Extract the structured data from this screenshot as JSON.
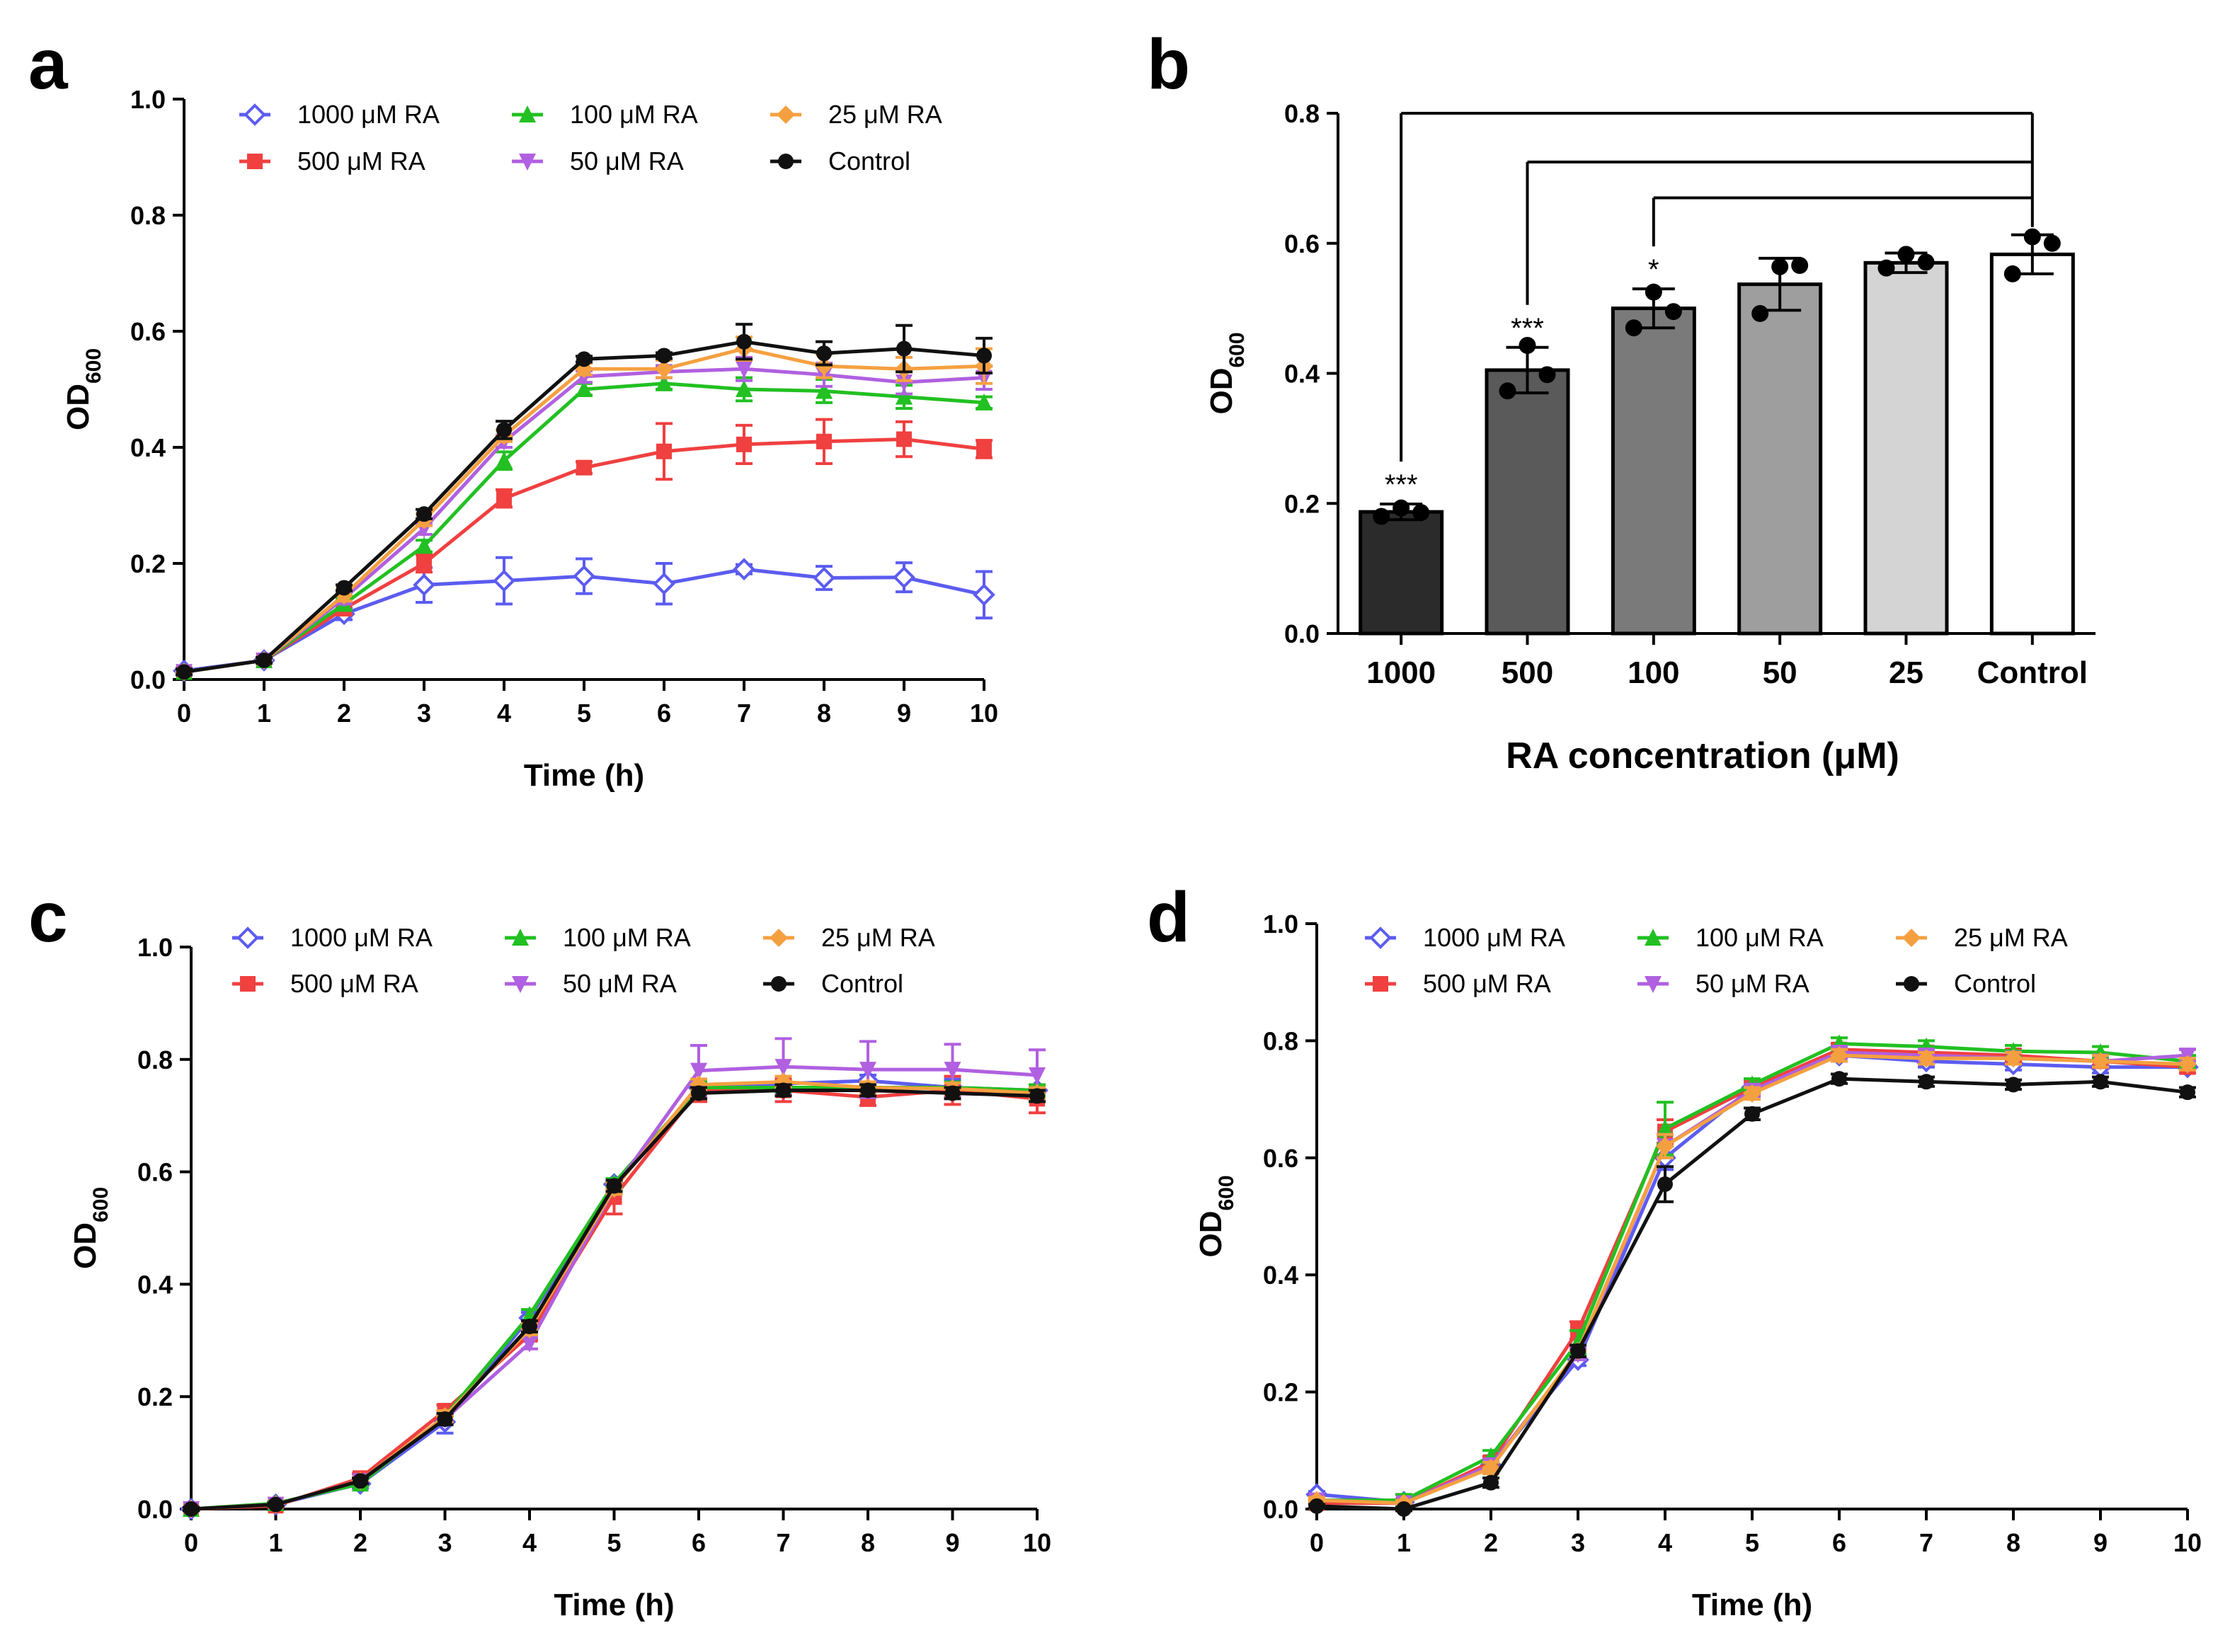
{
  "chart_data": [
    {
      "type": "line",
      "panel": "a",
      "xlabel": "Time (h)",
      "ylabel": "OD",
      "ylabel_sub": "600",
      "xlim": [
        0,
        10
      ],
      "ylim": [
        0,
        1.0
      ],
      "xticks": [
        "0",
        "1",
        "2",
        "3",
        "4",
        "5",
        "6",
        "7",
        "8",
        "9",
        "10"
      ],
      "yticks": [
        "0.0",
        "0.2",
        "0.4",
        "0.6",
        "0.8",
        "1.0"
      ],
      "legend": {
        "position": "top"
      },
      "series": [
        {
          "name": "1000 μM RA",
          "color": "#5c5cf0",
          "marker": "diamond-open",
          "y": [
            0.015,
            0.033,
            0.113,
            0.163,
            0.17,
            0.178,
            0.165,
            0.19,
            0.175,
            0.176,
            0.146
          ],
          "err": [
            0.005,
            0.005,
            0.01,
            0.03,
            0.04,
            0.03,
            0.035,
            0.008,
            0.02,
            0.025,
            0.04
          ]
        },
        {
          "name": "500 μM RA",
          "color": "#f04040",
          "marker": "square",
          "y": [
            0.013,
            0.033,
            0.122,
            0.2,
            0.312,
            0.365,
            0.393,
            0.405,
            0.41,
            0.414,
            0.397
          ],
          "err": [
            0.005,
            0.005,
            0.01,
            0.015,
            0.015,
            0.01,
            0.048,
            0.033,
            0.038,
            0.03,
            0.015
          ]
        },
        {
          "name": "100 μM RA",
          "color": "#22c022",
          "marker": "triangle-up",
          "y": [
            0.013,
            0.033,
            0.13,
            0.23,
            0.377,
            0.5,
            0.51,
            0.5,
            0.497,
            0.487,
            0.477
          ],
          "err": [
            0.005,
            0.005,
            0.01,
            0.01,
            0.015,
            0.01,
            0.01,
            0.02,
            0.02,
            0.02,
            0.01
          ]
        },
        {
          "name": "50 μM RA",
          "color": "#b060e0",
          "marker": "triangle-down",
          "y": [
            0.013,
            0.033,
            0.14,
            0.26,
            0.41,
            0.522,
            0.53,
            0.535,
            0.525,
            0.512,
            0.52
          ],
          "err": [
            0.005,
            0.005,
            0.01,
            0.01,
            0.01,
            0.01,
            0.01,
            0.02,
            0.02,
            0.02,
            0.02
          ]
        },
        {
          "name": "25 μM RA",
          "color": "#f5a040",
          "marker": "diamond",
          "y": [
            0.013,
            0.033,
            0.145,
            0.275,
            0.42,
            0.535,
            0.535,
            0.57,
            0.54,
            0.535,
            0.54
          ],
          "err": [
            0.005,
            0.005,
            0.01,
            0.01,
            0.01,
            0.01,
            0.015,
            0.02,
            0.02,
            0.02,
            0.03
          ]
        },
        {
          "name": "Control",
          "color": "#111111",
          "marker": "circle",
          "y": [
            0.013,
            0.033,
            0.158,
            0.285,
            0.43,
            0.552,
            0.558,
            0.582,
            0.562,
            0.57,
            0.558
          ],
          "err": [
            0.005,
            0.005,
            0.005,
            0.008,
            0.015,
            0.005,
            0.005,
            0.03,
            0.02,
            0.04,
            0.03
          ]
        }
      ]
    },
    {
      "type": "bar",
      "panel": "b",
      "xlabel": "RA concentration (μM)",
      "ylabel": "OD",
      "ylabel_sub": "600",
      "ylim": [
        0,
        0.8
      ],
      "yticks": [
        "0.0",
        "0.2",
        "0.4",
        "0.6",
        "0.8"
      ],
      "categories": [
        "1000",
        "500",
        "100",
        "50",
        "25",
        "Control"
      ],
      "values": [
        0.187,
        0.405,
        0.5,
        0.537,
        0.57,
        0.583
      ],
      "errors": [
        0.012,
        0.035,
        0.03,
        0.04,
        0.015,
        0.03
      ],
      "points": [
        [
          0.18,
          0.193,
          0.186
        ],
        [
          0.373,
          0.443,
          0.398
        ],
        [
          0.47,
          0.525,
          0.495
        ],
        [
          0.492,
          0.564,
          0.566
        ],
        [
          0.562,
          0.583,
          0.571
        ],
        [
          0.553,
          0.61,
          0.6
        ]
      ],
      "fills": [
        "#2b2b2b",
        "#5a5a5a",
        "#7a7a7a",
        "#9e9e9e",
        "#d4d4d4",
        "#ffffff"
      ],
      "significance": [
        "***",
        "***",
        "*",
        "",
        "",
        ""
      ],
      "comparisons": [
        {
          "from": "1000",
          "to": "Control"
        },
        {
          "from": "500",
          "to": "Control"
        },
        {
          "from": "100",
          "to": "Control"
        }
      ]
    },
    {
      "type": "line",
      "panel": "c",
      "xlabel": "Time (h)",
      "ylabel": "OD",
      "ylabel_sub": "600",
      "xlim": [
        0,
        10
      ],
      "ylim": [
        0,
        1.0
      ],
      "xticks": [
        "0",
        "1",
        "2",
        "3",
        "4",
        "5",
        "6",
        "7",
        "8",
        "9",
        "10"
      ],
      "yticks": [
        "0.0",
        "0.2",
        "0.4",
        "0.6",
        "0.8",
        "1.0"
      ],
      "legend": {
        "position": "top"
      },
      "series": [
        {
          "name": "1000 μM RA",
          "color": "#5c5cf0",
          "marker": "diamond-open",
          "y": [
            0.0,
            0.008,
            0.045,
            0.155,
            0.34,
            0.578,
            0.75,
            0.757,
            0.762,
            0.75,
            0.745
          ],
          "err": [
            0.003,
            0.003,
            0.008,
            0.02,
            0.01,
            0.008,
            0.015,
            0.01,
            0.01,
            0.015,
            0.01
          ]
        },
        {
          "name": "500 μM RA",
          "color": "#f04040",
          "marker": "square",
          "y": [
            0.0,
            0.006,
            0.055,
            0.175,
            0.31,
            0.555,
            0.745,
            0.745,
            0.733,
            0.745,
            0.73
          ],
          "err": [
            0.003,
            0.003,
            0.008,
            0.01,
            0.01,
            0.03,
            0.02,
            0.02,
            0.015,
            0.025,
            0.025
          ]
        },
        {
          "name": "100 μM RA",
          "color": "#22c022",
          "marker": "triangle-up",
          "y": [
            0.0,
            0.01,
            0.045,
            0.165,
            0.345,
            0.58,
            0.75,
            0.75,
            0.75,
            0.75,
            0.745
          ],
          "err": [
            0.003,
            0.003,
            0.005,
            0.01,
            0.01,
            0.008,
            0.01,
            0.01,
            0.01,
            0.01,
            0.01
          ]
        },
        {
          "name": "50 μM RA",
          "color": "#b060e0",
          "marker": "triangle-down",
          "y": [
            0.0,
            0.008,
            0.05,
            0.16,
            0.295,
            0.57,
            0.78,
            0.787,
            0.782,
            0.782,
            0.772
          ],
          "err": [
            0.003,
            0.003,
            0.005,
            0.01,
            0.01,
            0.01,
            0.045,
            0.05,
            0.05,
            0.045,
            0.045
          ]
        },
        {
          "name": "25 μM RA",
          "color": "#f5a040",
          "marker": "diamond",
          "y": [
            0.0,
            0.008,
            0.05,
            0.165,
            0.32,
            0.57,
            0.755,
            0.76,
            0.75,
            0.748,
            0.74
          ],
          "err": [
            0.003,
            0.003,
            0.005,
            0.01,
            0.01,
            0.01,
            0.01,
            0.01,
            0.01,
            0.01,
            0.01
          ]
        },
        {
          "name": "Control",
          "color": "#111111",
          "marker": "circle",
          "y": [
            0.0,
            0.008,
            0.05,
            0.16,
            0.325,
            0.575,
            0.74,
            0.745,
            0.745,
            0.74,
            0.735
          ],
          "err": [
            0.003,
            0.003,
            0.005,
            0.01,
            0.01,
            0.01,
            0.01,
            0.01,
            0.01,
            0.01,
            0.01
          ]
        }
      ]
    },
    {
      "type": "line",
      "panel": "d",
      "xlabel": "Time (h)",
      "ylabel": "OD",
      "ylabel_sub": "600",
      "xlim": [
        0,
        10
      ],
      "ylim": [
        0,
        1.0
      ],
      "xticks": [
        "0",
        "1",
        "2",
        "3",
        "4",
        "5",
        "6",
        "7",
        "8",
        "9",
        "10"
      ],
      "yticks": [
        "0.0",
        "0.2",
        "0.4",
        "0.6",
        "0.8",
        "1.0"
      ],
      "legend": {
        "position": "top"
      },
      "series": [
        {
          "name": "1000 μM RA",
          "color": "#5c5cf0",
          "marker": "diamond-open",
          "y": [
            0.025,
            0.012,
            0.075,
            0.255,
            0.6,
            0.72,
            0.775,
            0.765,
            0.76,
            0.755,
            0.755
          ],
          "err": [
            0.005,
            0.005,
            0.01,
            0.01,
            0.02,
            0.01,
            0.01,
            0.01,
            0.01,
            0.01,
            0.01
          ]
        },
        {
          "name": "500 μM RA",
          "color": "#f04040",
          "marker": "square",
          "y": [
            0.01,
            0.01,
            0.08,
            0.305,
            0.645,
            0.72,
            0.785,
            0.78,
            0.775,
            0.765,
            0.755
          ],
          "err": [
            0.005,
            0.005,
            0.01,
            0.015,
            0.02,
            0.01,
            0.01,
            0.01,
            0.01,
            0.01,
            0.01
          ]
        },
        {
          "name": "100 μM RA",
          "color": "#22c022",
          "marker": "triangle-up",
          "y": [
            0.015,
            0.015,
            0.09,
            0.285,
            0.65,
            0.725,
            0.795,
            0.79,
            0.782,
            0.78,
            0.765
          ],
          "err": [
            0.005,
            0.01,
            0.01,
            0.02,
            0.045,
            0.01,
            0.01,
            0.01,
            0.01,
            0.01,
            0.01
          ]
        },
        {
          "name": "50 μM RA",
          "color": "#b060e0",
          "marker": "triangle-down",
          "y": [
            0.015,
            0.01,
            0.075,
            0.265,
            0.62,
            0.715,
            0.78,
            0.775,
            0.77,
            0.765,
            0.775
          ],
          "err": [
            0.005,
            0.005,
            0.01,
            0.01,
            0.02,
            0.01,
            0.01,
            0.01,
            0.01,
            0.01,
            0.01
          ]
        },
        {
          "name": "25 μM RA",
          "color": "#f5a040",
          "marker": "diamond",
          "y": [
            0.015,
            0.01,
            0.07,
            0.27,
            0.62,
            0.71,
            0.775,
            0.77,
            0.77,
            0.765,
            0.76
          ],
          "err": [
            0.005,
            0.005,
            0.01,
            0.01,
            0.02,
            0.01,
            0.01,
            0.01,
            0.01,
            0.01,
            0.01
          ]
        },
        {
          "name": "Control",
          "color": "#111111",
          "marker": "circle",
          "y": [
            0.005,
            0.0,
            0.045,
            0.27,
            0.555,
            0.675,
            0.735,
            0.73,
            0.725,
            0.73,
            0.712
          ],
          "err": [
            0.003,
            0.003,
            0.008,
            0.01,
            0.03,
            0.01,
            0.008,
            0.008,
            0.008,
            0.008,
            0.008
          ]
        }
      ]
    }
  ]
}
